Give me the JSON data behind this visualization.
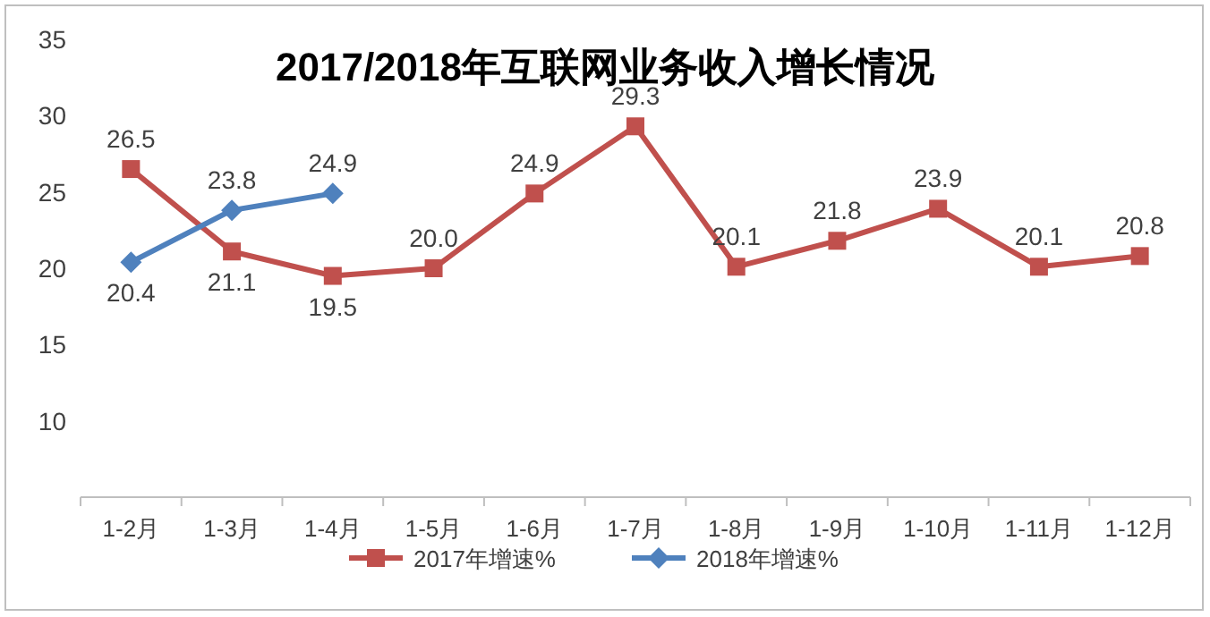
{
  "chart_data": {
    "type": "line",
    "title": "2017/2018年互联网业务收入增长情况",
    "categories": [
      "1-2月",
      "1-3月",
      "1-4月",
      "1-5月",
      "1-6月",
      "1-7月",
      "1-8月",
      "1-9月",
      "1-10月",
      "1-11月",
      "1-12月"
    ],
    "series": [
      {
        "name": "2017年增速%",
        "color": "#c0504d",
        "marker": "square",
        "values": [
          26.5,
          21.1,
          19.5,
          20.0,
          24.9,
          29.3,
          20.1,
          21.8,
          23.9,
          20.1,
          20.8
        ],
        "value_labels": [
          "26.5",
          "21.1",
          "19.5",
          "20.0",
          "24.9",
          "29.3",
          "20.1",
          "21.8",
          "23.9",
          "20.1",
          "20.8"
        ]
      },
      {
        "name": "2018年增速%",
        "color": "#4f81bd",
        "marker": "diamond",
        "values": [
          20.4,
          23.8,
          24.9,
          null,
          null,
          null,
          null,
          null,
          null,
          null,
          null
        ],
        "value_labels": [
          "20.4",
          "23.8",
          "24.9",
          null,
          null,
          null,
          null,
          null,
          null,
          null,
          null
        ]
      }
    ],
    "ylim": [
      5,
      35
    ],
    "yticks": [
      10,
      15,
      20,
      25,
      30,
      35
    ],
    "grid": false,
    "legend": "bottom",
    "line_style": "solid"
  }
}
